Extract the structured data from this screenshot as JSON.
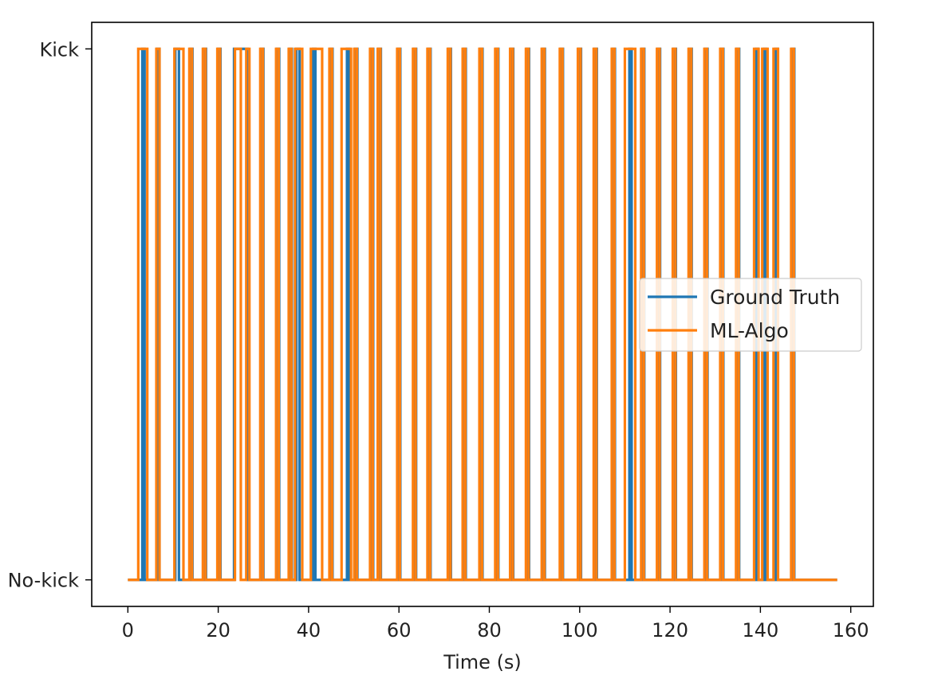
{
  "chart_data": {
    "type": "line",
    "step": true,
    "title": "",
    "xlabel": "Time (s)",
    "ylabel": "",
    "xlim": [
      -8,
      165
    ],
    "ylim": [
      -0.05,
      1.05
    ],
    "xticks": [
      0,
      20,
      40,
      60,
      80,
      100,
      120,
      140,
      160
    ],
    "xtick_labels": [
      "0",
      "20",
      "40",
      "60",
      "80",
      "100",
      "120",
      "140",
      "160"
    ],
    "yticks": [
      0,
      1
    ],
    "ytick_labels": [
      "No-kick",
      "Kick"
    ],
    "grid": false,
    "legend_position": "center-right",
    "series": [
      {
        "name": "Ground Truth",
        "color": "#1f77b4",
        "kick_intervals": [
          [
            3.2,
            3.7
          ],
          [
            6.5,
            7.0
          ],
          [
            10.5,
            11.3
          ],
          [
            13.8,
            14.3
          ],
          [
            16.8,
            17.3
          ],
          [
            20.0,
            20.5
          ],
          [
            23.5,
            26.5
          ],
          [
            29.5,
            30.0
          ],
          [
            33.0,
            33.5
          ],
          [
            35.8,
            36.3
          ],
          [
            37.3,
            38.0
          ],
          [
            41.0,
            41.5
          ],
          [
            44.8,
            45.3
          ],
          [
            48.5,
            49.0
          ],
          [
            50.3,
            50.8
          ],
          [
            53.8,
            54.3
          ],
          [
            55.5,
            56.0
          ],
          [
            59.8,
            60.3
          ],
          [
            63.3,
            63.8
          ],
          [
            66.5,
            67.0
          ],
          [
            71.0,
            71.5
          ],
          [
            74.3,
            74.8
          ],
          [
            78.0,
            78.5
          ],
          [
            81.5,
            82.0
          ],
          [
            84.8,
            85.3
          ],
          [
            88.3,
            88.8
          ],
          [
            91.8,
            92.3
          ],
          [
            95.8,
            96.3
          ],
          [
            99.8,
            100.3
          ],
          [
            103.3,
            103.8
          ],
          [
            107.3,
            107.8
          ],
          [
            111.0,
            111.5
          ],
          [
            113.8,
            114.3
          ],
          [
            117.3,
            117.8
          ],
          [
            120.8,
            121.3
          ],
          [
            124.3,
            124.8
          ],
          [
            127.8,
            128.3
          ],
          [
            131.3,
            131.8
          ],
          [
            134.8,
            135.3
          ],
          [
            139.0,
            139.5
          ],
          [
            140.8,
            141.3
          ],
          [
            143.3,
            143.8
          ],
          [
            147.0,
            147.5
          ]
        ],
        "x_range": [
          0,
          157
        ]
      },
      {
        "name": "ML-Algo",
        "color": "#ff7f0e",
        "kick_intervals": [
          [
            2.3,
            4.3
          ],
          [
            6.3,
            7.0
          ],
          [
            10.3,
            12.3
          ],
          [
            13.6,
            14.2
          ],
          [
            16.6,
            17.2
          ],
          [
            19.8,
            20.4
          ],
          [
            23.7,
            25.0
          ],
          [
            26.2,
            26.9
          ],
          [
            29.3,
            29.9
          ],
          [
            32.8,
            33.4
          ],
          [
            35.6,
            36.2
          ],
          [
            37.0,
            38.6
          ],
          [
            40.5,
            43.0
          ],
          [
            44.6,
            45.2
          ],
          [
            47.3,
            49.4
          ],
          [
            50.1,
            50.7
          ],
          [
            53.6,
            54.2
          ],
          [
            55.3,
            55.9
          ],
          [
            59.6,
            60.2
          ],
          [
            63.1,
            63.7
          ],
          [
            66.3,
            66.9
          ],
          [
            70.8,
            71.4
          ],
          [
            74.1,
            74.7
          ],
          [
            77.8,
            78.4
          ],
          [
            81.3,
            81.9
          ],
          [
            84.6,
            85.2
          ],
          [
            88.1,
            88.7
          ],
          [
            91.6,
            92.2
          ],
          [
            95.6,
            96.2
          ],
          [
            99.6,
            100.2
          ],
          [
            103.1,
            103.7
          ],
          [
            107.1,
            107.7
          ],
          [
            110.0,
            112.3
          ],
          [
            113.6,
            114.2
          ],
          [
            117.1,
            117.7
          ],
          [
            120.6,
            121.2
          ],
          [
            124.1,
            124.7
          ],
          [
            127.6,
            128.2
          ],
          [
            131.1,
            131.7
          ],
          [
            134.6,
            135.2
          ],
          [
            138.6,
            139.6
          ],
          [
            140.4,
            141.6
          ],
          [
            142.9,
            143.9
          ],
          [
            146.8,
            147.4
          ]
        ],
        "x_range": [
          0,
          157
        ]
      }
    ]
  }
}
